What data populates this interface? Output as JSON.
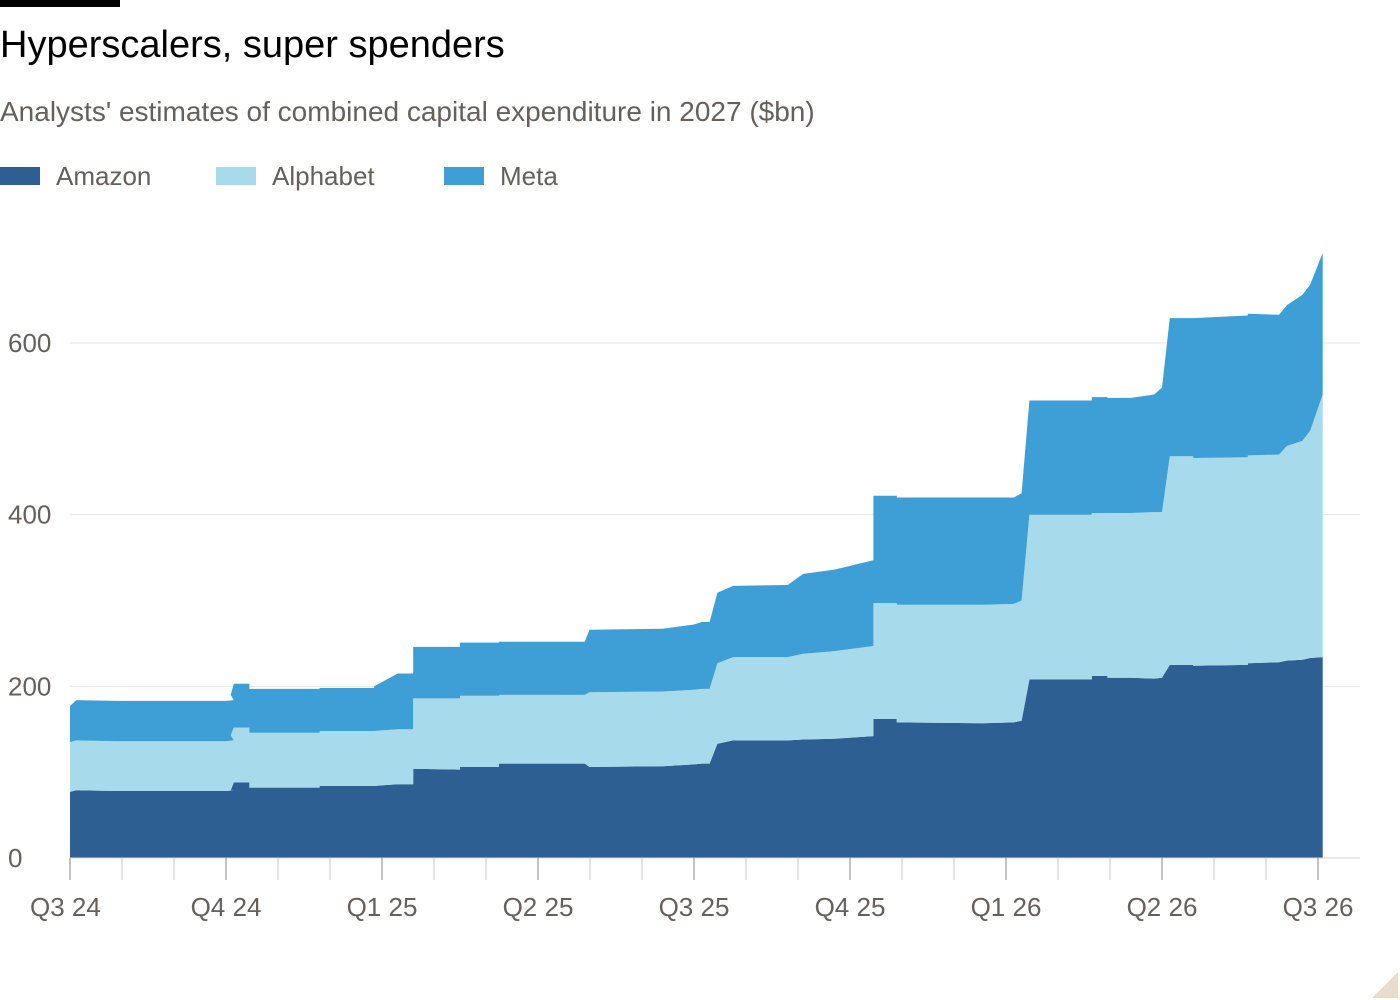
{
  "title": "Hyperscalers, super spenders",
  "subtitle": "Analysts' estimates of combined capital expenditure in 2027 ($bn)",
  "legend": [
    {
      "label": "Amazon",
      "color": "#2e5f92"
    },
    {
      "label": "Alphabet",
      "color": "#a7daeb"
    },
    {
      "label": "Meta",
      "color": "#3e9ed6"
    }
  ],
  "chart_data": {
    "type": "area",
    "stacked": true,
    "title": "Hyperscalers, super spenders",
    "subtitle": "Analysts' estimates of combined capital expenditure in 2027 ($bn)",
    "x_unit": "quarter index (0 = Q3 24)",
    "xlim": [
      0,
      8.1
    ],
    "ylim": [
      0,
      700
    ],
    "yticks": [
      0,
      200,
      400,
      600
    ],
    "xticks": [
      {
        "label": "Q3 24",
        "x": 0
      },
      {
        "label": "Q4 24",
        "x": 1
      },
      {
        "label": "Q1 25",
        "x": 2
      },
      {
        "label": "Q2 25",
        "x": 3
      },
      {
        "label": "Q3 25",
        "x": 4
      },
      {
        "label": "Q4 25",
        "x": 5
      },
      {
        "label": "Q1 26",
        "x": 6
      },
      {
        "label": "Q2 26",
        "x": 7
      },
      {
        "label": "Q3 26",
        "x": 8
      }
    ],
    "grid": true,
    "legend_position": "top-left",
    "series": [
      {
        "name": "Amazon",
        "color": "#2e5f92",
        "points": [
          [
            0,
            77
          ],
          [
            0.04,
            79
          ],
          [
            0.3,
            78
          ],
          [
            1.0,
            78
          ],
          [
            1.05,
            79
          ],
          [
            1.03,
            79
          ],
          [
            1.05,
            88
          ],
          [
            1.15,
            88
          ],
          [
            1.15,
            82
          ],
          [
            1.6,
            82
          ],
          [
            1.6,
            84
          ],
          [
            1.95,
            84
          ],
          [
            1.95,
            84
          ],
          [
            2.1,
            86
          ],
          [
            2.2,
            86
          ],
          [
            2.2,
            104
          ],
          [
            2.5,
            103
          ],
          [
            2.5,
            106
          ],
          [
            2.75,
            106
          ],
          [
            2.75,
            110
          ],
          [
            3.3,
            110
          ],
          [
            3.33,
            106
          ],
          [
            3.8,
            107
          ],
          [
            4.0,
            109
          ],
          [
            4.05,
            110
          ],
          [
            4.1,
            110
          ],
          [
            4.15,
            133
          ],
          [
            4.25,
            137
          ],
          [
            4.6,
            137
          ],
          [
            4.7,
            138
          ],
          [
            4.9,
            139
          ],
          [
            5.15,
            142
          ],
          [
            5.15,
            162
          ],
          [
            5.3,
            162
          ],
          [
            5.3,
            158
          ],
          [
            5.85,
            157
          ],
          [
            6.05,
            158
          ],
          [
            6.1,
            160
          ],
          [
            6.15,
            208
          ],
          [
            6.55,
            208
          ],
          [
            6.55,
            212
          ],
          [
            6.65,
            212
          ],
          [
            6.65,
            210
          ],
          [
            6.8,
            210
          ],
          [
            6.95,
            209
          ],
          [
            7.0,
            210
          ],
          [
            7.05,
            225
          ],
          [
            7.2,
            225
          ],
          [
            7.2,
            224
          ],
          [
            7.55,
            225
          ],
          [
            7.55,
            227
          ],
          [
            7.75,
            228
          ],
          [
            7.8,
            230
          ],
          [
            7.9,
            231
          ],
          [
            7.95,
            233
          ],
          [
            8.03,
            234
          ]
        ]
      },
      {
        "name": "Alphabet",
        "color": "#a7daeb",
        "points": [
          [
            0,
            58
          ],
          [
            0.04,
            58
          ],
          [
            0.3,
            58
          ],
          [
            1.0,
            58
          ],
          [
            1.05,
            58
          ],
          [
            1.03,
            64
          ],
          [
            1.05,
            64
          ],
          [
            1.15,
            64
          ],
          [
            1.15,
            64
          ],
          [
            1.6,
            64
          ],
          [
            1.6,
            64
          ],
          [
            1.95,
            64
          ],
          [
            1.95,
            64
          ],
          [
            2.1,
            64
          ],
          [
            2.2,
            64
          ],
          [
            2.2,
            82
          ],
          [
            2.5,
            83
          ],
          [
            2.5,
            83
          ],
          [
            2.75,
            83
          ],
          [
            2.75,
            80
          ],
          [
            3.3,
            80
          ],
          [
            3.33,
            87
          ],
          [
            3.8,
            87
          ],
          [
            4.0,
            87
          ],
          [
            4.05,
            87
          ],
          [
            4.1,
            87
          ],
          [
            4.15,
            94
          ],
          [
            4.25,
            97
          ],
          [
            4.6,
            97
          ],
          [
            4.7,
            100
          ],
          [
            4.9,
            102
          ],
          [
            5.15,
            105
          ],
          [
            5.15,
            135
          ],
          [
            5.3,
            135
          ],
          [
            5.3,
            137
          ],
          [
            5.85,
            138
          ],
          [
            6.05,
            138
          ],
          [
            6.1,
            140
          ],
          [
            6.15,
            192
          ],
          [
            6.55,
            192
          ],
          [
            6.55,
            190
          ],
          [
            6.65,
            190
          ],
          [
            6.65,
            192
          ],
          [
            6.8,
            192
          ],
          [
            6.95,
            194
          ],
          [
            7.0,
            193
          ],
          [
            7.05,
            243
          ],
          [
            7.2,
            243
          ],
          [
            7.2,
            242
          ],
          [
            7.55,
            242
          ],
          [
            7.55,
            242
          ],
          [
            7.75,
            242
          ],
          [
            7.8,
            250
          ],
          [
            7.9,
            255
          ],
          [
            7.95,
            265
          ],
          [
            8.03,
            306
          ]
        ]
      },
      {
        "name": "Meta",
        "color": "#3e9ed6",
        "points": [
          [
            0,
            42
          ],
          [
            0.04,
            47
          ],
          [
            0.3,
            47
          ],
          [
            1.0,
            47
          ],
          [
            1.05,
            47
          ],
          [
            1.03,
            47
          ],
          [
            1.05,
            51
          ],
          [
            1.15,
            51
          ],
          [
            1.15,
            51
          ],
          [
            1.6,
            51
          ],
          [
            1.6,
            50
          ],
          [
            1.95,
            50
          ],
          [
            1.95,
            52
          ],
          [
            2.1,
            65
          ],
          [
            2.2,
            65
          ],
          [
            2.2,
            60
          ],
          [
            2.5,
            60
          ],
          [
            2.5,
            62
          ],
          [
            2.75,
            62
          ],
          [
            2.75,
            62
          ],
          [
            3.3,
            62
          ],
          [
            3.33,
            73
          ],
          [
            3.8,
            73
          ],
          [
            4.0,
            76
          ],
          [
            4.05,
            78
          ],
          [
            4.1,
            78
          ],
          [
            4.15,
            82
          ],
          [
            4.25,
            83
          ],
          [
            4.6,
            84
          ],
          [
            4.7,
            93
          ],
          [
            4.9,
            95
          ],
          [
            5.15,
            100
          ],
          [
            5.15,
            125
          ],
          [
            5.3,
            125
          ],
          [
            5.3,
            125
          ],
          [
            5.85,
            125
          ],
          [
            6.05,
            124
          ],
          [
            6.1,
            125
          ],
          [
            6.15,
            133
          ],
          [
            6.55,
            133
          ],
          [
            6.55,
            135
          ],
          [
            6.65,
            135
          ],
          [
            6.65,
            134
          ],
          [
            6.8,
            134
          ],
          [
            6.95,
            137
          ],
          [
            7.0,
            145
          ],
          [
            7.05,
            161
          ],
          [
            7.2,
            161
          ],
          [
            7.2,
            163
          ],
          [
            7.55,
            165
          ],
          [
            7.55,
            165
          ],
          [
            7.75,
            163
          ],
          [
            7.8,
            164
          ],
          [
            7.9,
            170
          ],
          [
            7.95,
            170
          ],
          [
            8.03,
            165
          ]
        ]
      }
    ]
  }
}
